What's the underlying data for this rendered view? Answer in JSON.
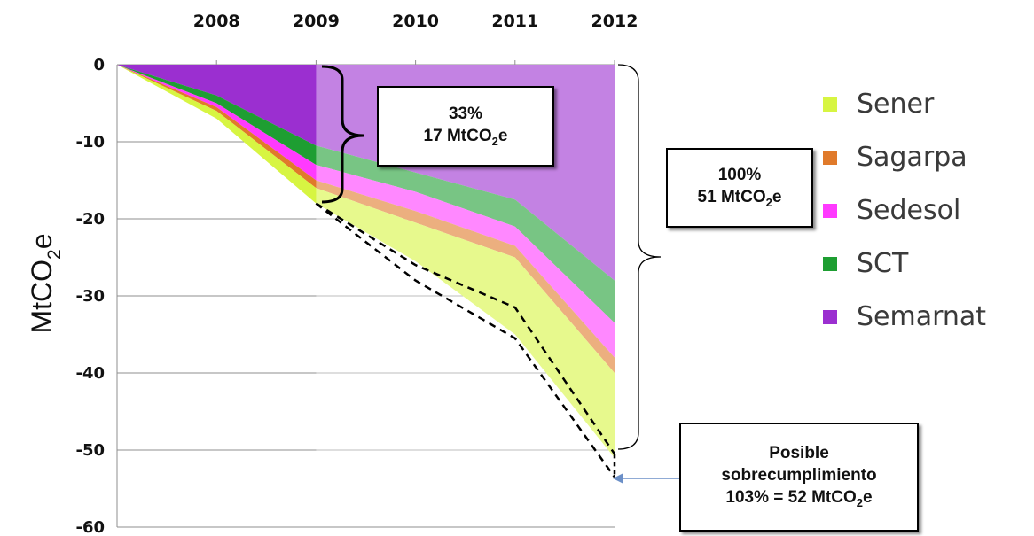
{
  "chart_data": {
    "type": "area",
    "title": "",
    "xlabel": "",
    "ylabel": "MtCO",
    "ylabel_sub": "2",
    "ylabel_tail": "e",
    "x": [
      2007,
      2008,
      2009,
      2010,
      2011,
      2012
    ],
    "x_tick_labels": [
      "2008",
      "2009",
      "2010",
      "2011",
      "2012"
    ],
    "y_ticks": [
      0,
      -10,
      -20,
      -30,
      -40,
      -50,
      -60
    ],
    "ylim": [
      -60,
      0
    ],
    "grid": true,
    "stack_order_top_to_bottom": [
      "Sener",
      "Sagarpa",
      "Sedesol",
      "SCT",
      "Semarnat"
    ],
    "series": [
      {
        "name": "Semarnat",
        "color": "#9b2fd0",
        "values": [
          0,
          -4,
          -10.5,
          -14,
          -17.5,
          -28
        ]
      },
      {
        "name": "SCT",
        "color": "#1e9e32",
        "values": [
          0,
          -1,
          -2.5,
          -2.5,
          -3.5,
          -5.5
        ]
      },
      {
        "name": "Sedesol",
        "color": "#ff3aff",
        "values": [
          0,
          -0.5,
          -2,
          -2.5,
          -2.5,
          -4.5
        ]
      },
      {
        "name": "Sagarpa",
        "color": "#e07a2a",
        "values": [
          0,
          -0.5,
          -1,
          -1.5,
          -1.5,
          -2
        ]
      },
      {
        "name": "Sener",
        "color": "#d7f542",
        "values": [
          0,
          -1,
          -2,
          -5,
          -10,
          -11
        ]
      }
    ],
    "projection_upper": {
      "x": [
        2009,
        2010,
        2011,
        2012
      ],
      "y": [
        -18,
        -26,
        -31.5,
        -50.5
      ]
    },
    "projection_lower": {
      "x": [
        2009,
        2010,
        2011,
        2012
      ],
      "y": [
        -18,
        -28,
        -35.5,
        -53.5
      ]
    },
    "legend_placement": "right",
    "annotations": [
      {
        "line1": "33%",
        "line2_main": "17 MtCO",
        "line2_sub": "2",
        "line2_tail": "e"
      },
      {
        "line1": "100%",
        "line2_main": "51 MtCO",
        "line2_sub": "2",
        "line2_tail": "e"
      },
      {
        "line1": "Posible",
        "line2": "sobrecumplimiento",
        "line3_main": "103% = 52 MtCO",
        "line3_sub": "2",
        "line3_tail": "e"
      }
    ],
    "colors": {
      "grid": "#8f8f8f",
      "highlight_overlay": "#ffffff",
      "arrow": "#6b8fc7"
    }
  }
}
